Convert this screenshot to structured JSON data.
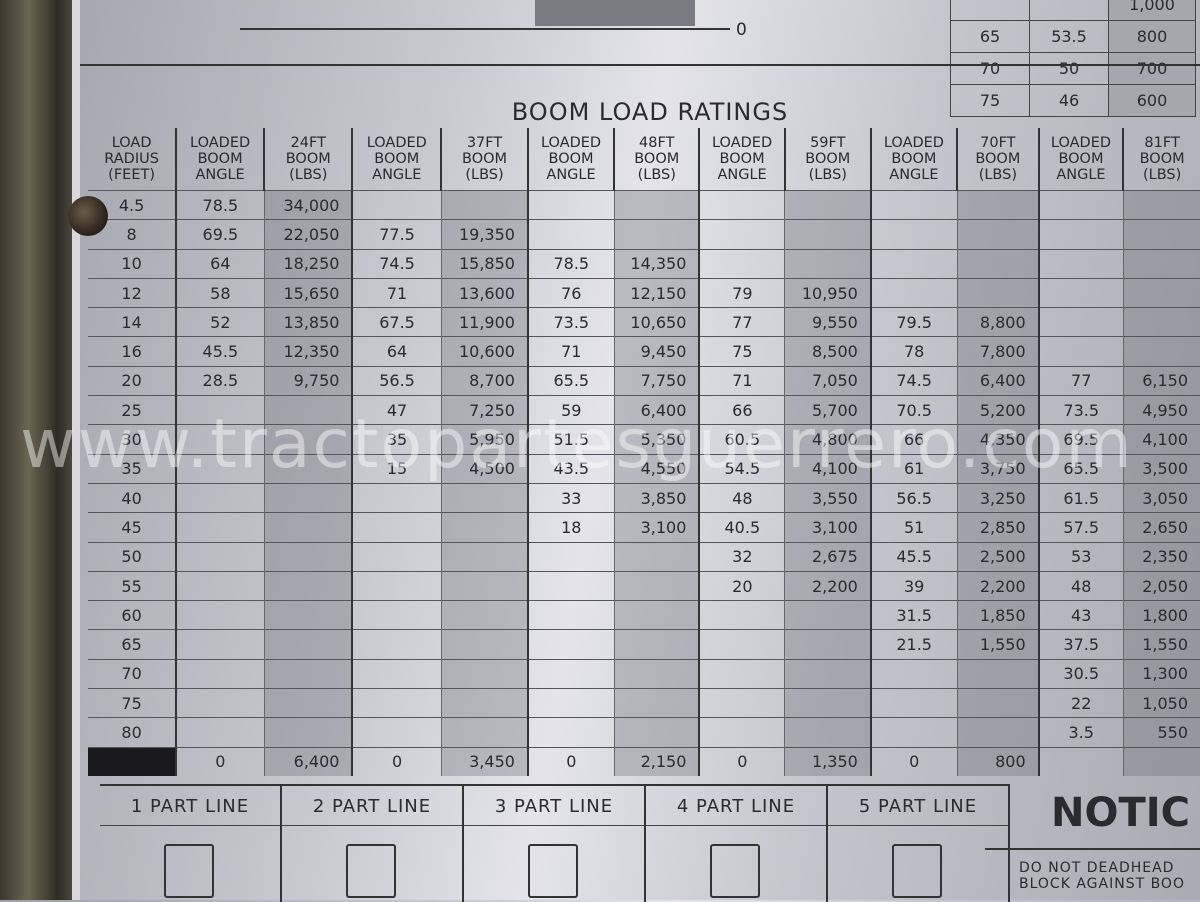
{
  "top": {
    "axis_zero": "0",
    "mini_table": [
      [
        "",
        "",
        "1,000"
      ],
      [
        "65",
        "53.5",
        "800"
      ],
      [
        "70",
        "50",
        "700"
      ],
      [
        "75",
        "46",
        "600"
      ]
    ]
  },
  "title": "BOOM LOAD RATINGS",
  "headers": [
    "LOAD RADIUS (FEET)",
    "LOADED BOOM ANGLE",
    "24FT BOOM (LBS)",
    "LOADED BOOM ANGLE",
    "37FT BOOM (LBS)",
    "LOADED BOOM ANGLE",
    "48FT BOOM (LBS)",
    "LOADED BOOM ANGLE",
    "59FT BOOM (LBS)",
    "LOADED BOOM ANGLE",
    "70FT BOOM (LBS)",
    "LOADED BOOM ANGLE",
    "81FT BOOM (LBS)"
  ],
  "rows": [
    [
      "4.5",
      "78.5",
      "34,000",
      "",
      "",
      "",
      "",
      "",
      "",
      "",
      "",
      "",
      ""
    ],
    [
      "8",
      "69.5",
      "22,050",
      "77.5",
      "19,350",
      "",
      "",
      "",
      "",
      "",
      "",
      "",
      ""
    ],
    [
      "10",
      "64",
      "18,250",
      "74.5",
      "15,850",
      "78.5",
      "14,350",
      "",
      "",
      "",
      "",
      "",
      ""
    ],
    [
      "12",
      "58",
      "15,650",
      "71",
      "13,600",
      "76",
      "12,150",
      "79",
      "10,950",
      "",
      "",
      "",
      ""
    ],
    [
      "14",
      "52",
      "13,850",
      "67.5",
      "11,900",
      "73.5",
      "10,650",
      "77",
      "9,550",
      "79.5",
      "8,800",
      "",
      ""
    ],
    [
      "16",
      "45.5",
      "12,350",
      "64",
      "10,600",
      "71",
      "9,450",
      "75",
      "8,500",
      "78",
      "7,800",
      "",
      ""
    ],
    [
      "20",
      "28.5",
      "9,750",
      "56.5",
      "8,700",
      "65.5",
      "7,750",
      "71",
      "7,050",
      "74.5",
      "6,400",
      "77",
      "6,150"
    ],
    [
      "25",
      "",
      "",
      "47",
      "7,250",
      "59",
      "6,400",
      "66",
      "5,700",
      "70.5",
      "5,200",
      "73.5",
      "4,950"
    ],
    [
      "30",
      "",
      "",
      "35",
      "5,950",
      "51.5",
      "5,350",
      "60.5",
      "4,800",
      "66",
      "4,350",
      "69.5",
      "4,100"
    ],
    [
      "35",
      "",
      "",
      "15",
      "4,500",
      "43.5",
      "4,550",
      "54.5",
      "4,100",
      "61",
      "3,750",
      "65.5",
      "3,500"
    ],
    [
      "40",
      "",
      "",
      "",
      "",
      "33",
      "3,850",
      "48",
      "3,550",
      "56.5",
      "3,250",
      "61.5",
      "3,050"
    ],
    [
      "45",
      "",
      "",
      "",
      "",
      "18",
      "3,100",
      "40.5",
      "3,100",
      "51",
      "2,850",
      "57.5",
      "2,650"
    ],
    [
      "50",
      "",
      "",
      "",
      "",
      "",
      "",
      "32",
      "2,675",
      "45.5",
      "2,500",
      "53",
      "2,350"
    ],
    [
      "55",
      "",
      "",
      "",
      "",
      "",
      "",
      "20",
      "2,200",
      "39",
      "2,200",
      "48",
      "2,050"
    ],
    [
      "60",
      "",
      "",
      "",
      "",
      "",
      "",
      "",
      "",
      "31.5",
      "1,850",
      "43",
      "1,800"
    ],
    [
      "65",
      "",
      "",
      "",
      "",
      "",
      "",
      "",
      "",
      "21.5",
      "1,550",
      "37.5",
      "1,550"
    ],
    [
      "70",
      "",
      "",
      "",
      "",
      "",
      "",
      "",
      "",
      "",
      "",
      "30.5",
      "1,300"
    ],
    [
      "75",
      "",
      "",
      "",
      "",
      "",
      "",
      "",
      "",
      "",
      "",
      "22",
      "1,050"
    ],
    [
      "80",
      "",
      "",
      "",
      "",
      "",
      "",
      "",
      "",
      "",
      "",
      "3.5",
      "550"
    ],
    [
      "",
      "0",
      "6,400",
      "0",
      "3,450",
      "0",
      "2,150",
      "0",
      "1,350",
      "0",
      "800",
      "",
      ""
    ]
  ],
  "part_lines": [
    "1 PART LINE",
    "2 PART LINE",
    "3 PART LINE",
    "4 PART LINE",
    "5 PART LINE"
  ],
  "notice": {
    "heading": "NOTIC",
    "text": "DO NOT DEADHEAD BLOCK AGAINST BOO"
  },
  "watermark": "www.tractopartesguerrero.com"
}
